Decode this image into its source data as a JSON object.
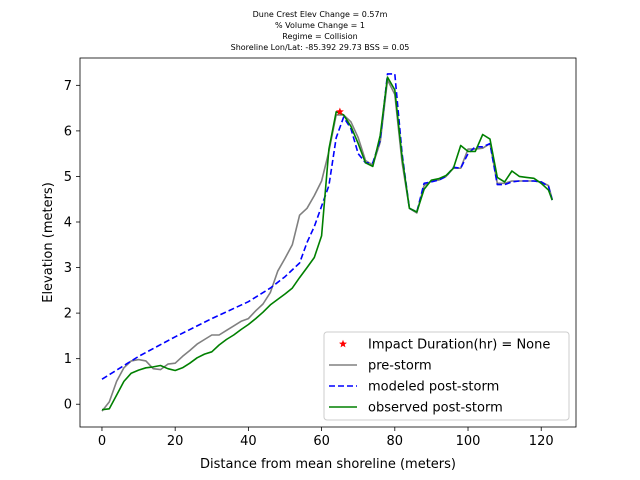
{
  "chart_data": {
    "type": "line",
    "title_lines": [
      "Dune Crest Elev Change = 0.57m",
      "% Volume Change = 1",
      "Regime = Collision",
      "Shoreline Lon/Lat: -85.392 29.73   BSS = 0.05"
    ],
    "xlabel": "Distance from mean shoreline (meters)",
    "ylabel": "Elevation (meters)",
    "xlim": [
      -6,
      129.5
    ],
    "ylim": [
      -0.5,
      7.6
    ],
    "xticks": [
      0,
      20,
      40,
      60,
      80,
      100,
      120
    ],
    "yticks": [
      0,
      1,
      2,
      3,
      4,
      5,
      6,
      7
    ],
    "legend_position": "lower right",
    "series": [
      {
        "name": "pre-storm",
        "color": "#808080",
        "style": "solid",
        "x": [
          0,
          2,
          4,
          6,
          8,
          10,
          12,
          14,
          16,
          18,
          20,
          22,
          24,
          26,
          28,
          30,
          32,
          34,
          36,
          38,
          40,
          42,
          44,
          46,
          48,
          50,
          52,
          54,
          56,
          58,
          60,
          62,
          64,
          66,
          68,
          70,
          72,
          74,
          76,
          78,
          80,
          82,
          84,
          86,
          88,
          90,
          92,
          94,
          96,
          98,
          100,
          102,
          104,
          106,
          108,
          110,
          112,
          114,
          116,
          118,
          120,
          122,
          123
        ],
        "y": [
          -0.15,
          0.05,
          0.5,
          0.8,
          0.95,
          0.98,
          0.95,
          0.78,
          0.76,
          0.88,
          0.9,
          1.05,
          1.18,
          1.32,
          1.42,
          1.52,
          1.52,
          1.62,
          1.72,
          1.82,
          1.88,
          2.05,
          2.2,
          2.45,
          2.92,
          3.2,
          3.5,
          4.15,
          4.3,
          4.58,
          4.9,
          5.55,
          6.35,
          6.35,
          6.2,
          5.85,
          5.35,
          5.25,
          5.75,
          7.12,
          6.8,
          5.3,
          4.3,
          4.2,
          4.8,
          4.9,
          4.92,
          5.0,
          5.18,
          5.18,
          5.6,
          5.6,
          5.62,
          5.72,
          4.85,
          4.85,
          4.9,
          4.9,
          4.9,
          4.9,
          4.88,
          4.8,
          4.5
        ]
      },
      {
        "name": "modeled post-storm",
        "color": "#0000ff",
        "style": "dashed",
        "x": [
          0,
          10,
          20,
          30,
          40,
          46,
          50,
          54,
          56,
          58,
          60,
          62,
          64,
          66,
          68,
          70,
          72,
          74,
          76,
          78,
          80,
          82,
          84,
          86,
          88,
          90,
          92,
          94,
          96,
          98,
          100,
          102,
          104,
          106,
          108,
          110,
          112,
          114,
          116,
          118,
          120,
          122,
          123
        ],
        "y": [
          0.55,
          1.05,
          1.48,
          1.88,
          2.25,
          2.55,
          2.8,
          3.1,
          3.55,
          3.9,
          4.35,
          4.8,
          5.85,
          6.3,
          6.05,
          5.5,
          5.3,
          5.3,
          5.8,
          7.25,
          7.25,
          5.5,
          4.3,
          4.22,
          4.85,
          4.88,
          4.92,
          5.0,
          5.2,
          5.18,
          5.5,
          5.65,
          5.65,
          5.72,
          4.82,
          4.82,
          4.88,
          4.9,
          4.9,
          4.9,
          4.88,
          4.78,
          4.48
        ]
      },
      {
        "name": "observed post-storm",
        "color": "#008000",
        "style": "solid",
        "x": [
          0,
          2,
          4,
          6,
          8,
          10,
          12,
          14,
          16,
          18,
          20,
          22,
          24,
          26,
          28,
          30,
          32,
          34,
          36,
          38,
          40,
          42,
          44,
          46,
          48,
          50,
          52,
          54,
          56,
          58,
          60,
          62,
          64,
          66,
          68,
          70,
          72,
          74,
          76,
          78,
          80,
          82,
          84,
          86,
          88,
          90,
          92,
          94,
          96,
          98,
          100,
          102,
          104,
          106,
          108,
          110,
          112,
          114,
          116,
          118,
          120,
          122,
          123
        ],
        "y": [
          -0.12,
          -0.1,
          0.2,
          0.5,
          0.68,
          0.75,
          0.8,
          0.82,
          0.85,
          0.78,
          0.74,
          0.8,
          0.9,
          1.02,
          1.1,
          1.15,
          1.3,
          1.42,
          1.52,
          1.64,
          1.75,
          1.88,
          2.02,
          2.18,
          2.3,
          2.42,
          2.55,
          2.78,
          3.0,
          3.22,
          3.7,
          5.6,
          6.42,
          6.35,
          6.1,
          5.72,
          5.3,
          5.22,
          5.9,
          7.18,
          6.9,
          5.42,
          4.3,
          4.22,
          4.72,
          4.92,
          4.95,
          5.02,
          5.18,
          5.68,
          5.55,
          5.55,
          5.92,
          5.82,
          4.98,
          4.88,
          5.12,
          5.0,
          4.98,
          4.96,
          4.85,
          4.7,
          4.48
        ]
      }
    ],
    "marker": {
      "name": "Impact Duration(hr) = None",
      "color": "#ff0000",
      "symbol": "star",
      "x": 65,
      "y": 6.42
    }
  }
}
